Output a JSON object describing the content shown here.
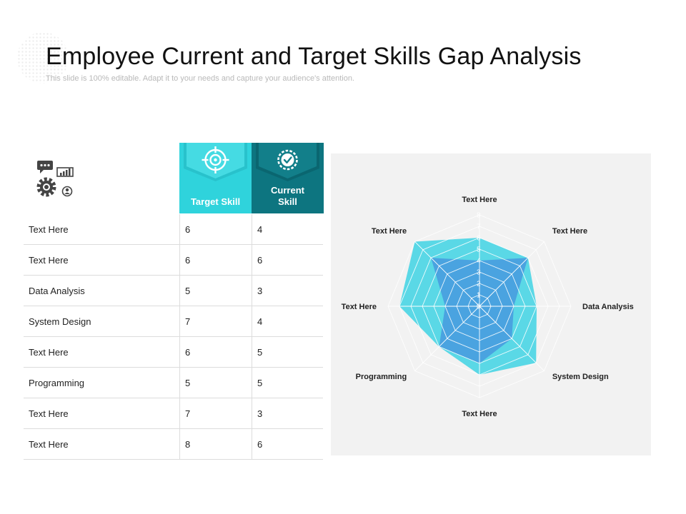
{
  "header": {
    "title": "Employee Current and Target Skills Gap Analysis",
    "subtitle": "This slide is 100% editable. Adapt it to your needs and capture your audience's attention."
  },
  "table": {
    "headers": {
      "target": "Target Skill",
      "current": "Current Skill"
    },
    "rows": [
      {
        "label": "Text Here",
        "target": "6",
        "current": "4"
      },
      {
        "label": "Text Here",
        "target": "6",
        "current": "6"
      },
      {
        "label": "Data Analysis",
        "target": "5",
        "current": "3"
      },
      {
        "label": "System Design",
        "target": "7",
        "current": "4"
      },
      {
        "label": "Text Here",
        "target": "6",
        "current": "5"
      },
      {
        "label": "Programming",
        "target": "5",
        "current": "5"
      },
      {
        "label": "Text Here",
        "target": "7",
        "current": "3"
      },
      {
        "label": "Text Here",
        "target": "8",
        "current": "6"
      }
    ]
  },
  "icons": {
    "header_group": [
      "chat-bubble-icon",
      "bar-chart-icon",
      "gear-icon",
      "user-icon"
    ],
    "target": "target-crosshair-icon",
    "current": "check-badge-icon"
  },
  "colors": {
    "target": "#2fd3dc",
    "current": "#0d7580",
    "radar_target": "#5ad8e6",
    "radar_current": "#4aa3e0",
    "panel": "#f2f2f2"
  },
  "chart_data": {
    "type": "radar",
    "categories": [
      "Text Here",
      "Text Here",
      "Data Analysis",
      "System Design",
      "Text Here",
      "Programming",
      "Text Here",
      "Text Here"
    ],
    "series": [
      {
        "name": "Target Skill",
        "values": [
          6,
          6,
          5,
          7,
          6,
          5,
          7,
          8
        ]
      },
      {
        "name": "Current Skill",
        "values": [
          4,
          6,
          3,
          4,
          5,
          5,
          3,
          6
        ]
      }
    ],
    "range": [
      0,
      8
    ],
    "ticks": [
      "0",
      "1",
      "2",
      "3",
      "4",
      "5",
      "6",
      "7",
      "8"
    ],
    "grid": true,
    "legend": "none"
  }
}
